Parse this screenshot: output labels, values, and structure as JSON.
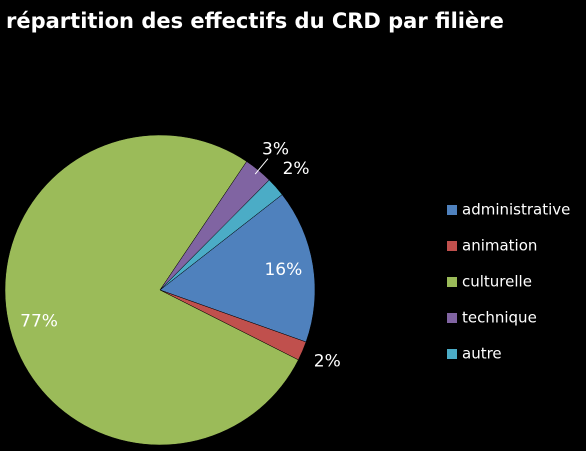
{
  "chart_data": {
    "type": "pie",
    "title": "répartition des effectifs du CRD par filière",
    "categories": [
      "administrative",
      "animation",
      "culturelle",
      "technique",
      "autre"
    ],
    "values": [
      16,
      2,
      77,
      3,
      2
    ],
    "value_labels": [
      "16%",
      "2%",
      "77%",
      "3%",
      "2%"
    ],
    "colors": [
      "#4f81bd",
      "#c0504d",
      "#9bbb59",
      "#8064a2",
      "#4bacc6"
    ],
    "legend": "right"
  }
}
